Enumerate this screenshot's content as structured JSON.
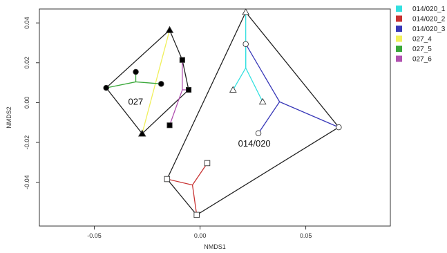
{
  "chart_data": {
    "type": "scatter",
    "title": "",
    "xlabel": "NMDS1",
    "ylabel": "NMDS2",
    "xlim": [
      -0.076,
      0.09
    ],
    "ylim": [
      -0.062,
      0.047
    ],
    "x_ticks": [
      {
        "value": -0.05,
        "label": "-0.05"
      },
      {
        "value": 0.0,
        "label": "0.00"
      },
      {
        "value": 0.05,
        "label": "0.05"
      }
    ],
    "y_ticks": [
      {
        "value": 0.04,
        "label": "0.04"
      },
      {
        "value": 0.02,
        "label": "0.02"
      },
      {
        "value": 0.0,
        "label": "0.00"
      },
      {
        "value": -0.02,
        "label": "-0.02"
      },
      {
        "value": -0.04,
        "label": "-0.04"
      }
    ],
    "grid": false,
    "legend_position": "right",
    "hulls": [
      {
        "label": "027",
        "label_pos": [
          -0.034,
          -0.001
        ],
        "vertices": [
          [
            -0.0144,
            0.0364
          ],
          [
            -0.0444,
            0.0074
          ],
          [
            -0.0274,
            -0.0156
          ],
          [
            -0.0054,
            0.0064
          ],
          [
            -0.0084,
            0.0214
          ]
        ]
      },
      {
        "label": "014/020",
        "label_pos": [
          0.018,
          -0.022
        ],
        "vertices": [
          [
            0.0216,
            0.0454
          ],
          [
            0.0656,
            -0.0124
          ],
          [
            -0.0016,
            -0.0564
          ],
          [
            -0.0156,
            -0.0384
          ]
        ]
      }
    ],
    "series": [
      {
        "name": "014/020_1",
        "color": "#33e0e0",
        "marker": "triangle-open",
        "centroid": [
          0.0216,
          0.0174
        ],
        "points": [
          [
            0.0216,
            0.0454
          ],
          [
            0.0156,
            0.0064
          ],
          [
            0.0296,
            0.0004
          ]
        ],
        "spokes_from": [
          0.0216,
          0.0294
        ]
      },
      {
        "name": "014/020_2",
        "color": "#c83232",
        "marker": "square-open",
        "centroid": [
          -0.0036,
          -0.0414
        ],
        "points": [
          [
            -0.0156,
            -0.0384
          ],
          [
            0.0034,
            -0.0304
          ],
          [
            -0.0016,
            -0.0564
          ]
        ],
        "spokes_from": null
      },
      {
        "name": "014/020_3",
        "color": "#3838b8",
        "marker": "circle-open",
        "centroid": [
          0.0376,
          0.0004
        ],
        "points": [
          [
            0.0216,
            0.0294
          ],
          [
            0.0276,
            -0.0154
          ],
          [
            0.0656,
            -0.0124
          ]
        ],
        "spokes_from": null
      },
      {
        "name": "027_4",
        "color": "#f0f05a",
        "marker": "triangle-filled",
        "centroid": [
          -0.0209,
          0.0104
        ],
        "points": [
          [
            -0.0144,
            0.0364
          ],
          [
            -0.0274,
            -0.0156
          ]
        ],
        "spokes_from": null
      },
      {
        "name": "027_5",
        "color": "#3aa83a",
        "marker": "circle-filled",
        "centroid": [
          -0.0304,
          0.0104
        ],
        "points": [
          [
            -0.0444,
            0.0074
          ],
          [
            -0.0304,
            0.0154
          ],
          [
            -0.0184,
            0.0094
          ]
        ],
        "spokes_from": null
      },
      {
        "name": "027_6",
        "color": "#b050b0",
        "marker": "square-filled",
        "centroid": [
          -0.0084,
          0.0064
        ],
        "points": [
          [
            -0.0084,
            0.0214
          ],
          [
            -0.0054,
            0.0064
          ],
          [
            -0.0144,
            -0.0114
          ]
        ],
        "spokes_from": null
      }
    ]
  }
}
